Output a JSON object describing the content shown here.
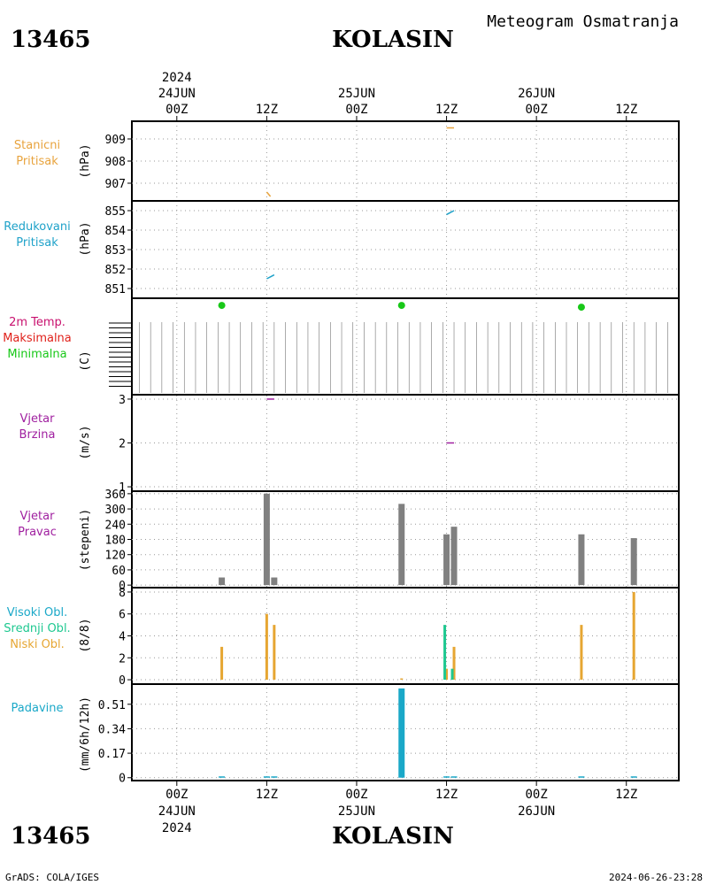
{
  "header": {
    "title": "Meteogram Osmatranja",
    "station_id": "13465",
    "station_name": "KOLASIN"
  },
  "footer": {
    "credit": "GrADS: COLA/IGES",
    "timestamp": "2024-06-26-23:28"
  },
  "time_axis": {
    "top_ticks": [
      "00Z",
      "12Z",
      "00Z",
      "12Z",
      "00Z",
      "12Z"
    ],
    "top_dates": [
      "24JUN",
      "25JUN",
      "26JUN"
    ],
    "top_year": "2024",
    "bottom_ticks": [
      "00Z",
      "12Z",
      "00Z",
      "12Z",
      "00Z",
      "12Z"
    ],
    "bottom_dates": [
      "24JUN",
      "25JUN",
      "26JUN"
    ],
    "bottom_year": "2024"
  },
  "panels": {
    "station_pressure": {
      "label_lines": [
        "Stanicni",
        "Pritisak"
      ],
      "unit": "(hPa)",
      "color": "#e8a33d"
    },
    "reduced_pressure": {
      "label_lines": [
        "Redukovani",
        "Pritisak"
      ],
      "unit": "(hPa)",
      "color": "#1fa2c9"
    },
    "temperature": {
      "label_lines": [
        "2m Temp.",
        "Maksimalna",
        "Minimalna"
      ],
      "label_colors": [
        "#c8106e",
        "#e0201a",
        "#18c818"
      ],
      "unit": "(C)"
    },
    "wind_speed": {
      "label_lines": [
        "Vjetar",
        "Brzina"
      ],
      "unit": "(m/s)",
      "color": "#a020a0"
    },
    "wind_dir": {
      "label_lines": [
        "Vjetar",
        "Pravac"
      ],
      "unit": "(stepeni)",
      "color": "#a020a0"
    },
    "clouds": {
      "label_lines": [
        "Visoki Obl.",
        "Srednji Obl.",
        "Niski Obl."
      ],
      "label_colors": [
        "#1aa8c8",
        "#1ec890",
        "#e6a632"
      ],
      "unit": "(8/8)"
    },
    "precip": {
      "label_lines": [
        "Padavine"
      ],
      "unit": "(mm/6h/12h)",
      "color": "#1aa8c8"
    }
  },
  "chart_data": [
    {
      "type": "line",
      "panel": "station_pressure",
      "x_unit": "hours since 2024-06-24 00Z",
      "ylim": [
        906.2,
        909.8
      ],
      "yticks": [
        907,
        908,
        909
      ],
      "series": [
        {
          "values": [
            [
              12,
              906.6
            ],
            [
              12.5,
              906.4
            ]
          ]
        },
        {
          "values": [
            [
              36,
              909.5
            ],
            [
              37,
              909.5
            ]
          ]
        }
      ]
    },
    {
      "type": "line",
      "panel": "reduced_pressure",
      "x_unit": "hours since 2024-06-24 00Z",
      "ylim": [
        850.5,
        855.5
      ],
      "yticks": [
        851,
        852,
        853,
        854,
        855
      ],
      "series": [
        {
          "values": [
            [
              12,
              851.5
            ],
            [
              12.5,
              851.6
            ],
            [
              13,
              851.7
            ]
          ]
        },
        {
          "values": [
            [
              36,
              854.8
            ],
            [
              36.5,
              854.9
            ],
            [
              37,
              855.0
            ]
          ]
        }
      ]
    },
    {
      "type": "scatter",
      "panel": "temperature",
      "x_unit": "hours since 2024-06-24 00Z",
      "ylim": [
        -4,
        50
      ],
      "min_temp_points": [
        [
          6,
          46
        ],
        [
          30,
          46
        ],
        [
          54,
          45
        ]
      ]
    },
    {
      "type": "line",
      "panel": "wind_speed",
      "x_unit": "hours since 2024-06-24 00Z",
      "ylim": [
        0.9,
        3.1
      ],
      "yticks": [
        1,
        2,
        3
      ],
      "series": [
        {
          "values": [
            [
              12,
              3.0
            ],
            [
              13,
              3.0
            ]
          ]
        },
        {
          "values": [
            [
              36,
              2.0
            ],
            [
              37,
              2.0
            ]
          ]
        }
      ]
    },
    {
      "type": "bar",
      "panel": "wind_dir",
      "x_unit": "hours since 2024-06-24 00Z",
      "ylim": [
        -10,
        370
      ],
      "yticks": [
        0,
        60,
        120,
        180,
        240,
        300,
        360
      ],
      "color": "#808080",
      "values": [
        [
          6,
          30
        ],
        [
          12,
          360
        ],
        [
          13,
          30
        ],
        [
          30,
          320
        ],
        [
          36,
          200
        ],
        [
          37,
          230
        ],
        [
          54,
          200
        ],
        [
          61,
          185
        ]
      ]
    },
    {
      "type": "bar",
      "panel": "clouds",
      "x_unit": "hours since 2024-06-24 00Z",
      "ylim": [
        -0.4,
        8.4
      ],
      "yticks": [
        0,
        2,
        4,
        6,
        8
      ],
      "series": [
        {
          "name": "Niski Obl.",
          "color": "#e6a632",
          "values": [
            [
              6,
              3
            ],
            [
              12,
              6
            ],
            [
              13,
              5
            ],
            [
              30,
              0
            ],
            [
              36,
              1
            ],
            [
              37,
              3
            ],
            [
              54,
              5
            ],
            [
              61,
              8
            ]
          ]
        },
        {
          "name": "Srednji Obl.",
          "color": "#1ec890",
          "values": [
            [
              36,
              5
            ],
            [
              37,
              1
            ]
          ]
        }
      ]
    },
    {
      "type": "bar",
      "panel": "precip",
      "x_unit": "hours since 2024-06-24 00Z",
      "ylim": [
        -0.02,
        0.65
      ],
      "yticks": [
        "0",
        "0.17",
        "0.34",
        "0.51"
      ],
      "color": "#1aa8c8",
      "values": [
        [
          6,
          0.0
        ],
        [
          12,
          0.0
        ],
        [
          13,
          0.0
        ],
        [
          30,
          0.62
        ],
        [
          36,
          0.0
        ],
        [
          37,
          0.0
        ],
        [
          54,
          0.0
        ],
        [
          61,
          0.0
        ]
      ]
    }
  ]
}
